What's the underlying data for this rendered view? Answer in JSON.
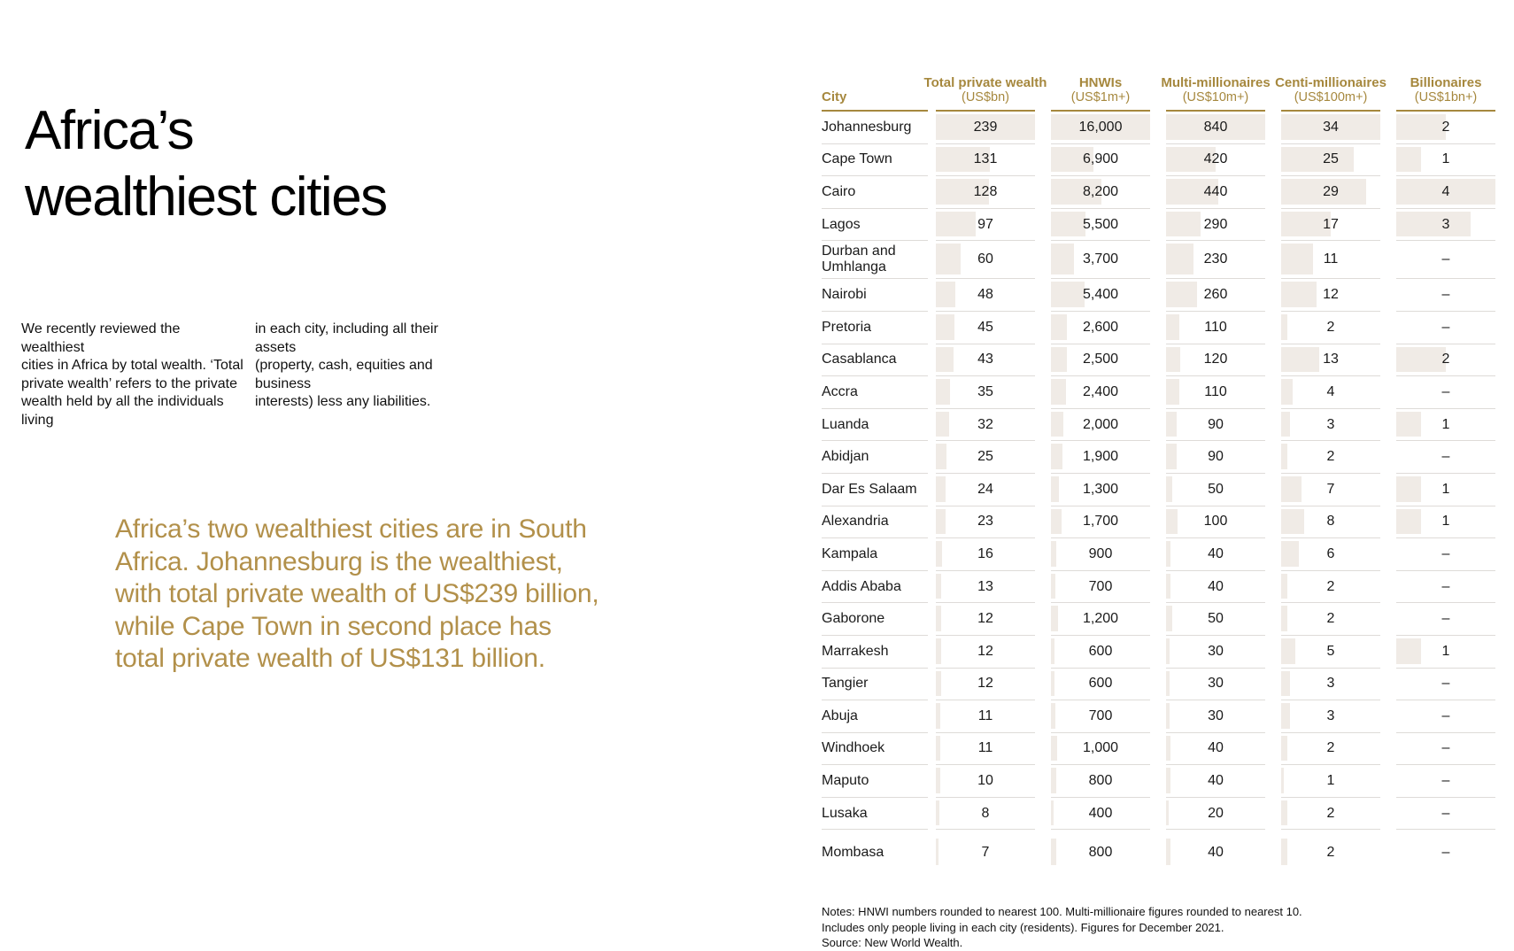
{
  "page": {
    "title": "Africa’s\nwealthiest cities",
    "intro_col1": "We recently reviewed the wealthiest\ncities in Africa by total wealth. ‘Total\nprivate wealth’ refers to the private\nwealth held by all the individuals living",
    "intro_col2": "in each city, including all their assets\n(property, cash, equities and business\ninterests) less any liabilities.",
    "callout": "Africa’s two wealthiest cities are in South\nAfrica. Johannesburg is the wealthiest,\nwith total private wealth of US$239 billion,\nwhile Cape Town in second place has\ntotal private wealth of US$131 billion."
  },
  "colors": {
    "table_gold": "#a6883e",
    "callout_gold": "#b2904a",
    "bar_fill": "#f0ebe6",
    "row_line": "#dedbd8",
    "text": "#1a1a1a"
  },
  "chart_data": {
    "type": "table",
    "title": "Africa’s wealthiest cities",
    "bar_encoding": "each numeric cell has a light beige bar, left-aligned, width proportional to value relative to column maximum",
    "no_data_marker": "–",
    "columns": [
      {
        "key": "city",
        "label": "City",
        "unit": "",
        "max": null
      },
      {
        "key": "total_private_wealth",
        "label": "Total private wealth",
        "unit": "(US$bn)",
        "max": 239
      },
      {
        "key": "hnwis",
        "label": "HNWIs",
        "unit": "(US$1m+)",
        "max": 16000
      },
      {
        "key": "multi_millionaires",
        "label": "Multi-millionaires",
        "unit": "(US$10m+)",
        "max": 840
      },
      {
        "key": "centi_millionaires",
        "label": "Centi-millionaires",
        "unit": "(US$100m+)",
        "max": 34
      },
      {
        "key": "billionaires",
        "label": "Billionaires",
        "unit": "(US$1bn+)",
        "max": 4
      }
    ],
    "rows": [
      {
        "city": "Johannesburg",
        "values": [
          {
            "text": "239",
            "value": 239
          },
          {
            "text": "16,000",
            "value": 16000
          },
          {
            "text": "840",
            "value": 840
          },
          {
            "text": "34",
            "value": 34
          },
          {
            "text": "2",
            "value": 2
          }
        ]
      },
      {
        "city": "Cape Town",
        "values": [
          {
            "text": "131",
            "value": 131
          },
          {
            "text": "6,900",
            "value": 6900
          },
          {
            "text": "420",
            "value": 420
          },
          {
            "text": "25",
            "value": 25
          },
          {
            "text": "1",
            "value": 1
          }
        ]
      },
      {
        "city": "Cairo",
        "values": [
          {
            "text": "128",
            "value": 128
          },
          {
            "text": "8,200",
            "value": 8200
          },
          {
            "text": "440",
            "value": 440
          },
          {
            "text": "29",
            "value": 29
          },
          {
            "text": "4",
            "value": 4
          }
        ]
      },
      {
        "city": "Lagos",
        "values": [
          {
            "text": "97",
            "value": 97
          },
          {
            "text": "5,500",
            "value": 5500
          },
          {
            "text": "290",
            "value": 290
          },
          {
            "text": "17",
            "value": 17
          },
          {
            "text": "3",
            "value": 3
          }
        ]
      },
      {
        "city": "Durban and Umhlanga",
        "values": [
          {
            "text": "60",
            "value": 60
          },
          {
            "text": "3,700",
            "value": 3700
          },
          {
            "text": "230",
            "value": 230
          },
          {
            "text": "11",
            "value": 11
          },
          {
            "text": "–",
            "value": 0
          }
        ]
      },
      {
        "city": "Nairobi",
        "values": [
          {
            "text": "48",
            "value": 48
          },
          {
            "text": "5,400",
            "value": 5400
          },
          {
            "text": "260",
            "value": 260
          },
          {
            "text": "12",
            "value": 12
          },
          {
            "text": "–",
            "value": 0
          }
        ]
      },
      {
        "city": "Pretoria",
        "values": [
          {
            "text": "45",
            "value": 45
          },
          {
            "text": "2,600",
            "value": 2600
          },
          {
            "text": "110",
            "value": 110
          },
          {
            "text": "2",
            "value": 2
          },
          {
            "text": "–",
            "value": 0
          }
        ]
      },
      {
        "city": "Casablanca",
        "values": [
          {
            "text": "43",
            "value": 43
          },
          {
            "text": "2,500",
            "value": 2500
          },
          {
            "text": "120",
            "value": 120
          },
          {
            "text": "13",
            "value": 13
          },
          {
            "text": "2",
            "value": 2
          }
        ]
      },
      {
        "city": "Accra",
        "values": [
          {
            "text": "35",
            "value": 35
          },
          {
            "text": "2,400",
            "value": 2400
          },
          {
            "text": "110",
            "value": 110
          },
          {
            "text": "4",
            "value": 4
          },
          {
            "text": "–",
            "value": 0
          }
        ]
      },
      {
        "city": "Luanda",
        "values": [
          {
            "text": "32",
            "value": 32
          },
          {
            "text": "2,000",
            "value": 2000
          },
          {
            "text": "90",
            "value": 90
          },
          {
            "text": "3",
            "value": 3
          },
          {
            "text": "1",
            "value": 1
          }
        ]
      },
      {
        "city": "Abidjan",
        "values": [
          {
            "text": "25",
            "value": 25
          },
          {
            "text": "1,900",
            "value": 1900
          },
          {
            "text": "90",
            "value": 90
          },
          {
            "text": "2",
            "value": 2
          },
          {
            "text": "–",
            "value": 0
          }
        ]
      },
      {
        "city": "Dar Es Salaam",
        "values": [
          {
            "text": "24",
            "value": 24
          },
          {
            "text": "1,300",
            "value": 1300
          },
          {
            "text": "50",
            "value": 50
          },
          {
            "text": "7",
            "value": 7
          },
          {
            "text": "1",
            "value": 1
          }
        ]
      },
      {
        "city": "Alexandria",
        "values": [
          {
            "text": "23",
            "value": 23
          },
          {
            "text": "1,700",
            "value": 1700
          },
          {
            "text": "100",
            "value": 100
          },
          {
            "text": "8",
            "value": 8
          },
          {
            "text": "1",
            "value": 1
          }
        ]
      },
      {
        "city": "Kampala",
        "values": [
          {
            "text": "16",
            "value": 16
          },
          {
            "text": "900",
            "value": 900
          },
          {
            "text": "40",
            "value": 40
          },
          {
            "text": "6",
            "value": 6
          },
          {
            "text": "–",
            "value": 0
          }
        ]
      },
      {
        "city": "Addis Ababa",
        "values": [
          {
            "text": "13",
            "value": 13
          },
          {
            "text": "700",
            "value": 700
          },
          {
            "text": "40",
            "value": 40
          },
          {
            "text": "2",
            "value": 2
          },
          {
            "text": "–",
            "value": 0
          }
        ]
      },
      {
        "city": "Gaborone",
        "values": [
          {
            "text": "12",
            "value": 12
          },
          {
            "text": "1,200",
            "value": 1200
          },
          {
            "text": "50",
            "value": 50
          },
          {
            "text": "2",
            "value": 2
          },
          {
            "text": "–",
            "value": 0
          }
        ]
      },
      {
        "city": "Marrakesh",
        "values": [
          {
            "text": "12",
            "value": 12
          },
          {
            "text": "600",
            "value": 600
          },
          {
            "text": "30",
            "value": 30
          },
          {
            "text": "5",
            "value": 5
          },
          {
            "text": "1",
            "value": 1
          }
        ]
      },
      {
        "city": "Tangier",
        "values": [
          {
            "text": "12",
            "value": 12
          },
          {
            "text": "600",
            "value": 600
          },
          {
            "text": "30",
            "value": 30
          },
          {
            "text": "3",
            "value": 3
          },
          {
            "text": "–",
            "value": 0
          }
        ]
      },
      {
        "city": "Abuja",
        "values": [
          {
            "text": "11",
            "value": 11
          },
          {
            "text": "700",
            "value": 700
          },
          {
            "text": "30",
            "value": 30
          },
          {
            "text": "3",
            "value": 3
          },
          {
            "text": "–",
            "value": 0
          }
        ]
      },
      {
        "city": "Windhoek",
        "values": [
          {
            "text": "11",
            "value": 11
          },
          {
            "text": "1,000",
            "value": 1000
          },
          {
            "text": "40",
            "value": 40
          },
          {
            "text": "2",
            "value": 2
          },
          {
            "text": "–",
            "value": 0
          }
        ]
      },
      {
        "city": "Maputo",
        "values": [
          {
            "text": "10",
            "value": 10
          },
          {
            "text": "800",
            "value": 800
          },
          {
            "text": "40",
            "value": 40
          },
          {
            "text": "1",
            "value": 1
          },
          {
            "text": "–",
            "value": 0
          }
        ]
      },
      {
        "city": "Lusaka",
        "values": [
          {
            "text": "8",
            "value": 8
          },
          {
            "text": "400",
            "value": 400
          },
          {
            "text": "20",
            "value": 20
          },
          {
            "text": "2",
            "value": 2
          },
          {
            "text": "–",
            "value": 0
          }
        ]
      },
      {
        "city": "Mombasa",
        "gap_before": true,
        "values": [
          {
            "text": "7",
            "value": 7
          },
          {
            "text": "800",
            "value": 800
          },
          {
            "text": "40",
            "value": 40
          },
          {
            "text": "2",
            "value": 2
          },
          {
            "text": "–",
            "value": 0
          }
        ]
      }
    ],
    "notes": "Notes: HNWI numbers rounded to nearest 100. Multi-millionaire figures rounded to nearest 10.\nIncludes only people living in each city (residents). Figures for December 2021.\nSource: New World Wealth."
  }
}
